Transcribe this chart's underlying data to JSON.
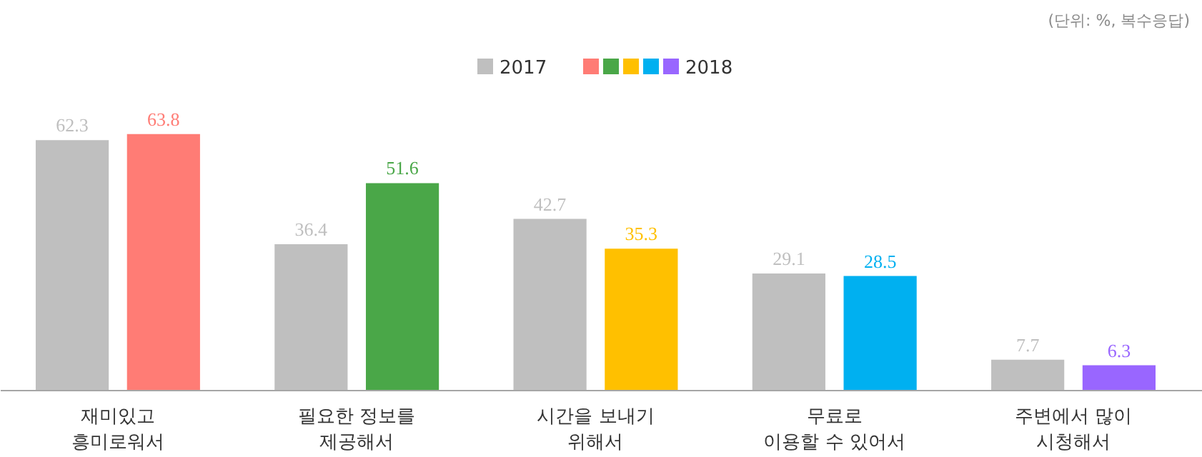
{
  "chart_data": {
    "type": "bar",
    "categories": [
      "재미있고\n흥미로워서",
      "필요한 정보를\n제공해서",
      "시간을 보내기\n위해서",
      "무료로\n이용할 수 있어서",
      "주변에서 많이\n시청해서"
    ],
    "series": [
      {
        "name": "2017",
        "color": "#bfbfbf",
        "values": [
          62.3,
          36.4,
          42.7,
          29.1,
          7.7
        ]
      },
      {
        "name": "2018",
        "colors": [
          "#ff7c75",
          "#4aa748",
          "#ffc000",
          "#00b0f0",
          "#9966ff"
        ],
        "values": [
          63.8,
          51.6,
          35.3,
          28.5,
          6.3
        ]
      }
    ],
    "data_labels": true,
    "legend": "top",
    "grid": false,
    "annotations": [
      "(단위: %, 복수응답)"
    ]
  }
}
